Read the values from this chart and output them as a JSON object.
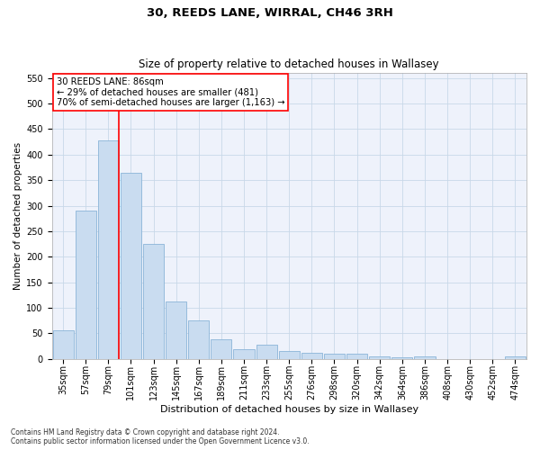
{
  "title": "30, REEDS LANE, WIRRAL, CH46 3RH",
  "subtitle": "Size of property relative to detached houses in Wallasey",
  "xlabel": "Distribution of detached houses by size in Wallasey",
  "ylabel": "Number of detached properties",
  "categories": [
    "35sqm",
    "57sqm",
    "79sqm",
    "101sqm",
    "123sqm",
    "145sqm",
    "167sqm",
    "189sqm",
    "211sqm",
    "233sqm",
    "255sqm",
    "276sqm",
    "298sqm",
    "320sqm",
    "342sqm",
    "364sqm",
    "386sqm",
    "408sqm",
    "430sqm",
    "452sqm",
    "474sqm"
  ],
  "values": [
    55,
    290,
    428,
    365,
    225,
    113,
    76,
    38,
    18,
    28,
    15,
    12,
    10,
    10,
    5,
    3,
    5,
    0,
    0,
    0,
    4
  ],
  "bar_color": "#c9dcf0",
  "bar_edge_color": "#8ab4d8",
  "red_line_index": 2,
  "annotation_text": "30 REEDS LANE: 86sqm\n← 29% of detached houses are smaller (481)\n70% of semi-detached houses are larger (1,163) →",
  "annotation_box_color": "white",
  "annotation_box_edge_color": "red",
  "ylim": [
    0,
    560
  ],
  "yticks": [
    0,
    50,
    100,
    150,
    200,
    250,
    300,
    350,
    400,
    450,
    500,
    550
  ],
  "grid_color": "#c8d8e8",
  "background_color": "#eef2fb",
  "footer": "Contains HM Land Registry data © Crown copyright and database right 2024.\nContains public sector information licensed under the Open Government Licence v3.0.",
  "title_fontsize": 9.5,
  "subtitle_fontsize": 8.5,
  "xlabel_fontsize": 8,
  "ylabel_fontsize": 7.5,
  "tick_fontsize": 7,
  "annotation_fontsize": 7.2,
  "footer_fontsize": 5.5
}
